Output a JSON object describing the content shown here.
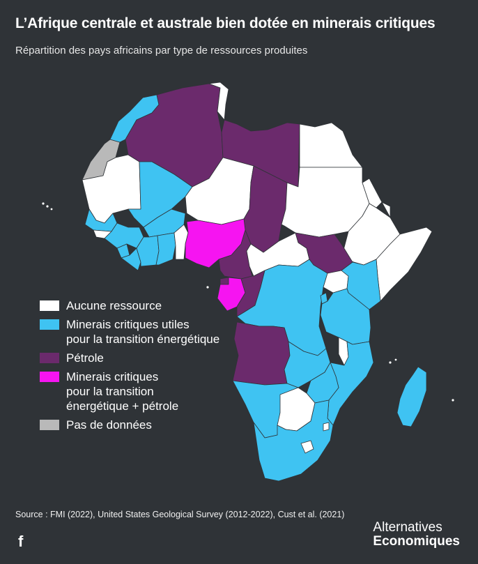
{
  "title": "L’Afrique centrale et australe bien dotée en minerais critiques",
  "subtitle": "Répartition des pays africains par type de ressources produites",
  "colors": {
    "background": "#2f3337",
    "none": "#ffffff",
    "critical": "#3fc3f2",
    "oil": "#6b2a6c",
    "critical_oil": "#f614f1",
    "no_data": "#b9b9b9"
  },
  "legend": [
    {
      "key": "none",
      "label": "Aucune ressource"
    },
    {
      "key": "critical",
      "label": "Minerais critiques utiles\npour la transition énergétique"
    },
    {
      "key": "oil",
      "label": "Pétrole"
    },
    {
      "key": "critical_oil",
      "label": "Minerais critiques\npour la transition\nénergétique + pétrole"
    },
    {
      "key": "no_data",
      "label": "Pas de données"
    }
  ],
  "source": "Source : FMI (2022), United States Geological Survey (2012-2022), Cust et al. (2021)",
  "social_icon": "facebook-icon",
  "social_label": "f",
  "brand": {
    "line1": "Alternatives",
    "line2": "Economiques"
  }
}
